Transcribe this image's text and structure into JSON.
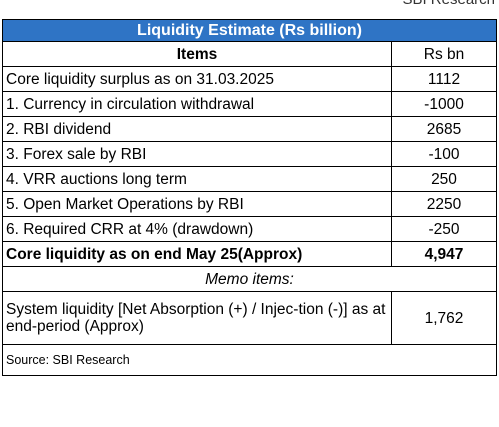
{
  "header": {
    "watermark": "SBI Research",
    "title": "Liquidity Estimate  (Rs billion)"
  },
  "table": {
    "columns": [
      "Items",
      "Rs bn"
    ],
    "rows": [
      [
        "Core liquidity surplus as on 31.03.2025",
        "1112"
      ],
      [
        "1. Currency in circulation withdrawal",
        "-1000"
      ],
      [
        "2. RBI dividend",
        "2685"
      ],
      [
        "3. Forex sale by RBI",
        "-100"
      ],
      [
        "4. VRR auctions long term",
        "250"
      ],
      [
        "5. Open Market Operations by RBI",
        "2250"
      ],
      [
        "6. Required CRR at 4% (drawdown)",
        "-250"
      ]
    ],
    "total": [
      "Core liquidity  as on end May 25(Approx)",
      "4,947"
    ],
    "memo": "Memo items:",
    "memo_row": [
      "System liquidity [Net Absorption (+) / Injec-tion (-)] as at end-period (Approx)",
      "1,762"
    ],
    "source": "Source: SBI Research"
  }
}
